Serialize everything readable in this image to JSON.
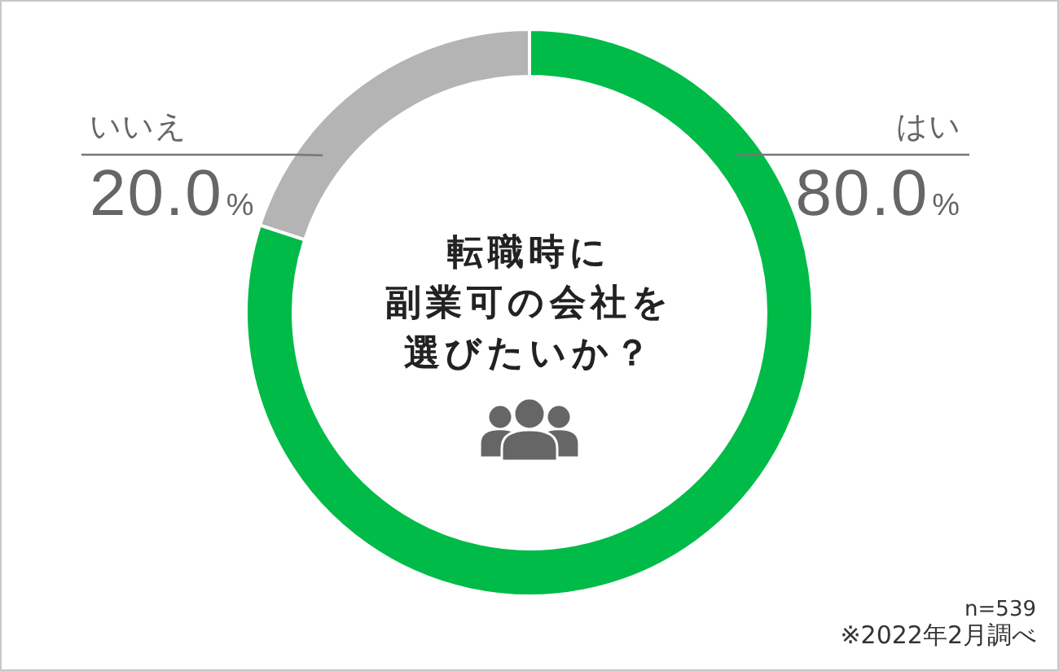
{
  "chart_data": {
    "type": "donut",
    "title": "転職時に副業可の会社を選びたいか？",
    "categories": [
      "はい",
      "いいえ"
    ],
    "values": [
      80.0,
      20.0
    ],
    "colors": [
      "#00bb48",
      "#b4b4b4"
    ],
    "value_labels": [
      "80.0%",
      "20.0%"
    ],
    "annotations": [
      "n=539",
      "※2022年2月調べ"
    ]
  }
}
